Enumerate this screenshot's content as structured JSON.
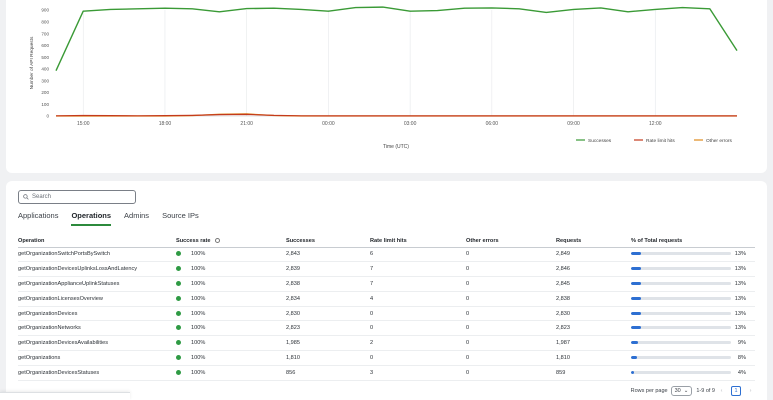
{
  "chart_data": {
    "type": "line",
    "ylabel": "Number of API Requests",
    "xlabel": "Time (UTC)",
    "yticks": [
      0,
      100,
      200,
      300,
      400,
      500,
      600,
      700,
      800,
      900
    ],
    "ylim": [
      0,
      900
    ],
    "xticks": [
      "15:00",
      "18:00",
      "21:00",
      "00:00",
      "03:00",
      "06:00",
      "09:00",
      "12:00"
    ],
    "x_positions": [
      0.5,
      3.5,
      6.5,
      9.5,
      12.5,
      15.5,
      18.5,
      21.5
    ],
    "xlim": [
      -0.5,
      24.5
    ],
    "series": [
      {
        "name": "Successes",
        "color": "#3a9a36",
        "x": [
          -0.5,
          0.5,
          1.5,
          2.5,
          3.5,
          4.5,
          5.5,
          6.5,
          7.5,
          8.5,
          9.5,
          10.5,
          11.5,
          12.5,
          13.5,
          14.5,
          15.5,
          16.5,
          17.5,
          18.5,
          19.5,
          20.5,
          21.5,
          22.5,
          23.5,
          24.5
        ],
        "values": [
          385,
          890,
          905,
          910,
          915,
          910,
          885,
          912,
          915,
          905,
          890,
          920,
          925,
          890,
          895,
          915,
          918,
          910,
          880,
          905,
          918,
          885,
          905,
          920,
          910,
          555
        ]
      },
      {
        "name": "Rate limit hits",
        "color": "#c43a1c",
        "x": [
          -0.5,
          0.5,
          1.5,
          2.5,
          3.5,
          4.5,
          5.5,
          6.5,
          7.5,
          8.5,
          9.5,
          10.5,
          11.5,
          12.5,
          13.5,
          14.5,
          15.5,
          16.5,
          17.5,
          18.5,
          19.5,
          20.5,
          21.5,
          22.5,
          23.5,
          24.5
        ],
        "values": [
          2,
          4,
          3,
          2,
          3,
          5,
          12,
          14,
          5,
          2,
          1,
          1,
          1,
          1,
          1,
          1,
          1,
          1,
          1,
          1,
          1,
          1,
          1,
          1,
          1,
          1
        ]
      },
      {
        "name": "Other errors",
        "color": "#e08a1a",
        "x": [
          -0.5,
          0.5,
          1.5,
          2.5,
          3.5,
          4.5,
          5.5,
          6.5,
          7.5,
          8.5,
          9.5,
          10.5,
          11.5,
          12.5,
          13.5,
          14.5,
          15.5,
          16.5,
          17.5,
          18.5,
          19.5,
          20.5,
          21.5,
          22.5,
          23.5,
          24.5
        ],
        "values": [
          0,
          0,
          0,
          0,
          0,
          3,
          15,
          18,
          4,
          0,
          0,
          0,
          0,
          0,
          0,
          0,
          0,
          0,
          0,
          0,
          0,
          0,
          0,
          0,
          0,
          0
        ]
      }
    ],
    "grid": "vertical",
    "legend": "bottom-right"
  },
  "search": {
    "placeholder": "Search"
  },
  "tabs": [
    {
      "label": "Applications",
      "active": false
    },
    {
      "label": "Operations",
      "active": true
    },
    {
      "label": "Admins",
      "active": false
    },
    {
      "label": "Source IPs",
      "active": false
    }
  ],
  "table": {
    "columns": [
      "Operation",
      "Success rate",
      "Successes",
      "Rate limit hits",
      "Other errors",
      "Requests",
      "% of Total requests"
    ],
    "rows": [
      {
        "op": "getOrganizationSwitchPortsBySwitch",
        "rate": "100%",
        "succ": "2,843",
        "rl": "6",
        "oe": "0",
        "req": "2,849",
        "pct": "13%",
        "share": 0.13
      },
      {
        "op": "getOrganizationDevicesUplinksLossAndLatency",
        "rate": "100%",
        "succ": "2,839",
        "rl": "7",
        "oe": "0",
        "req": "2,846",
        "pct": "13%",
        "share": 0.13
      },
      {
        "op": "getOrganizationApplianceUplinkStatuses",
        "rate": "100%",
        "succ": "2,838",
        "rl": "7",
        "oe": "0",
        "req": "2,845",
        "pct": "13%",
        "share": 0.13
      },
      {
        "op": "getOrganizationLicensesOverview",
        "rate": "100%",
        "succ": "2,834",
        "rl": "4",
        "oe": "0",
        "req": "2,838",
        "pct": "13%",
        "share": 0.13
      },
      {
        "op": "getOrganizationDevices",
        "rate": "100%",
        "succ": "2,830",
        "rl": "0",
        "oe": "0",
        "req": "2,830",
        "pct": "13%",
        "share": 0.13
      },
      {
        "op": "getOrganizationNetworks",
        "rate": "100%",
        "succ": "2,823",
        "rl": "0",
        "oe": "0",
        "req": "2,823",
        "pct": "13%",
        "share": 0.13
      },
      {
        "op": "getOrganizationDevicesAvailabilities",
        "rate": "100%",
        "succ": "1,985",
        "rl": "2",
        "oe": "0",
        "req": "1,987",
        "pct": "9%",
        "share": 0.09
      },
      {
        "op": "getOrganizations",
        "rate": "100%",
        "succ": "1,810",
        "rl": "0",
        "oe": "0",
        "req": "1,810",
        "pct": "8%",
        "share": 0.08
      },
      {
        "op": "getOrganizationDevicesStatuses",
        "rate": "100%",
        "succ": "856",
        "rl": "3",
        "oe": "0",
        "req": "859",
        "pct": "4%",
        "share": 0.04
      }
    ]
  },
  "pager": {
    "rows_label": "Rows per page",
    "rows_value": "30",
    "range": "1-9 of 9",
    "page": "1"
  }
}
